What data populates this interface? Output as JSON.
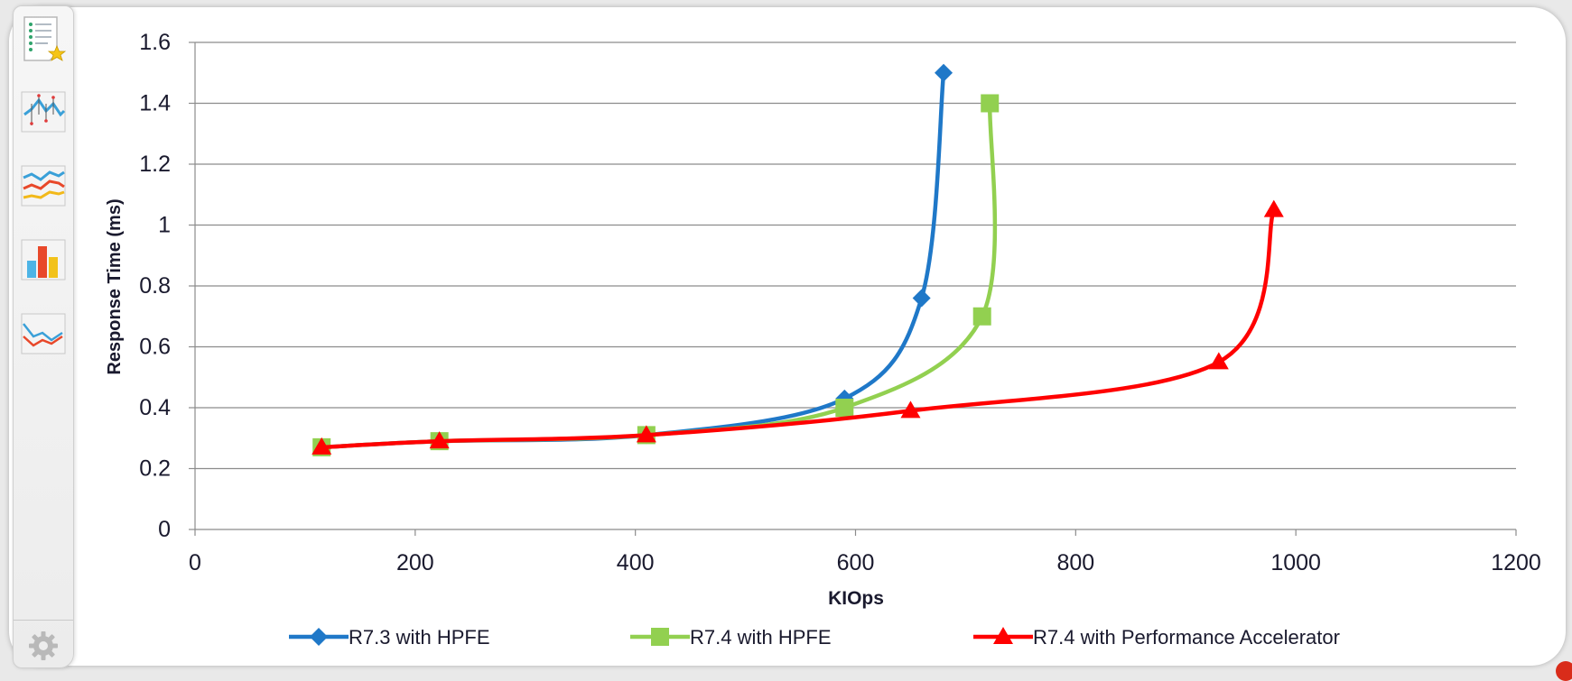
{
  "toolbar": {
    "tools": [
      {
        "icon": "list-star-icon"
      },
      {
        "icon": "line-points-chart-icon"
      },
      {
        "icon": "multi-line-chart-icon"
      },
      {
        "icon": "bar-chart-icon"
      },
      {
        "icon": "line-chart-icon"
      }
    ],
    "settings_icon": "gear-icon"
  },
  "chart_data": {
    "type": "line",
    "title": "",
    "xlabel": "KIOps",
    "ylabel": "Response Time (ms)",
    "xlim": [
      0,
      1200
    ],
    "ylim": [
      0,
      1.6
    ],
    "xticks": [
      "0",
      "200",
      "400",
      "600",
      "800",
      "1000",
      "1200"
    ],
    "yticks": [
      "0",
      "0.2",
      "0.4",
      "0.6",
      "0.8",
      "1",
      "1.2",
      "1.4",
      "1.6"
    ],
    "grid": "horizontal",
    "legend_position": "bottom",
    "series": [
      {
        "name": "R7.3 with HPFE",
        "color": "#1f78c8",
        "marker": "diamond",
        "points": [
          [
            115,
            0.27
          ],
          [
            222,
            0.29
          ],
          [
            410,
            0.31
          ],
          [
            590,
            0.43
          ],
          [
            660,
            0.76
          ],
          [
            680,
            1.5
          ]
        ]
      },
      {
        "name": "R7.4 with HPFE",
        "color": "#92d050",
        "marker": "square",
        "points": [
          [
            115,
            0.27
          ],
          [
            222,
            0.29
          ],
          [
            410,
            0.31
          ],
          [
            590,
            0.4
          ],
          [
            715,
            0.7
          ],
          [
            722,
            1.4
          ]
        ]
      },
      {
        "name": "R7.4 with Performance Accelerator",
        "color": "#ff0000",
        "marker": "triangle",
        "points": [
          [
            115,
            0.27
          ],
          [
            222,
            0.29
          ],
          [
            410,
            0.31
          ],
          [
            650,
            0.39
          ],
          [
            930,
            0.55
          ],
          [
            980,
            1.05
          ]
        ]
      }
    ]
  }
}
